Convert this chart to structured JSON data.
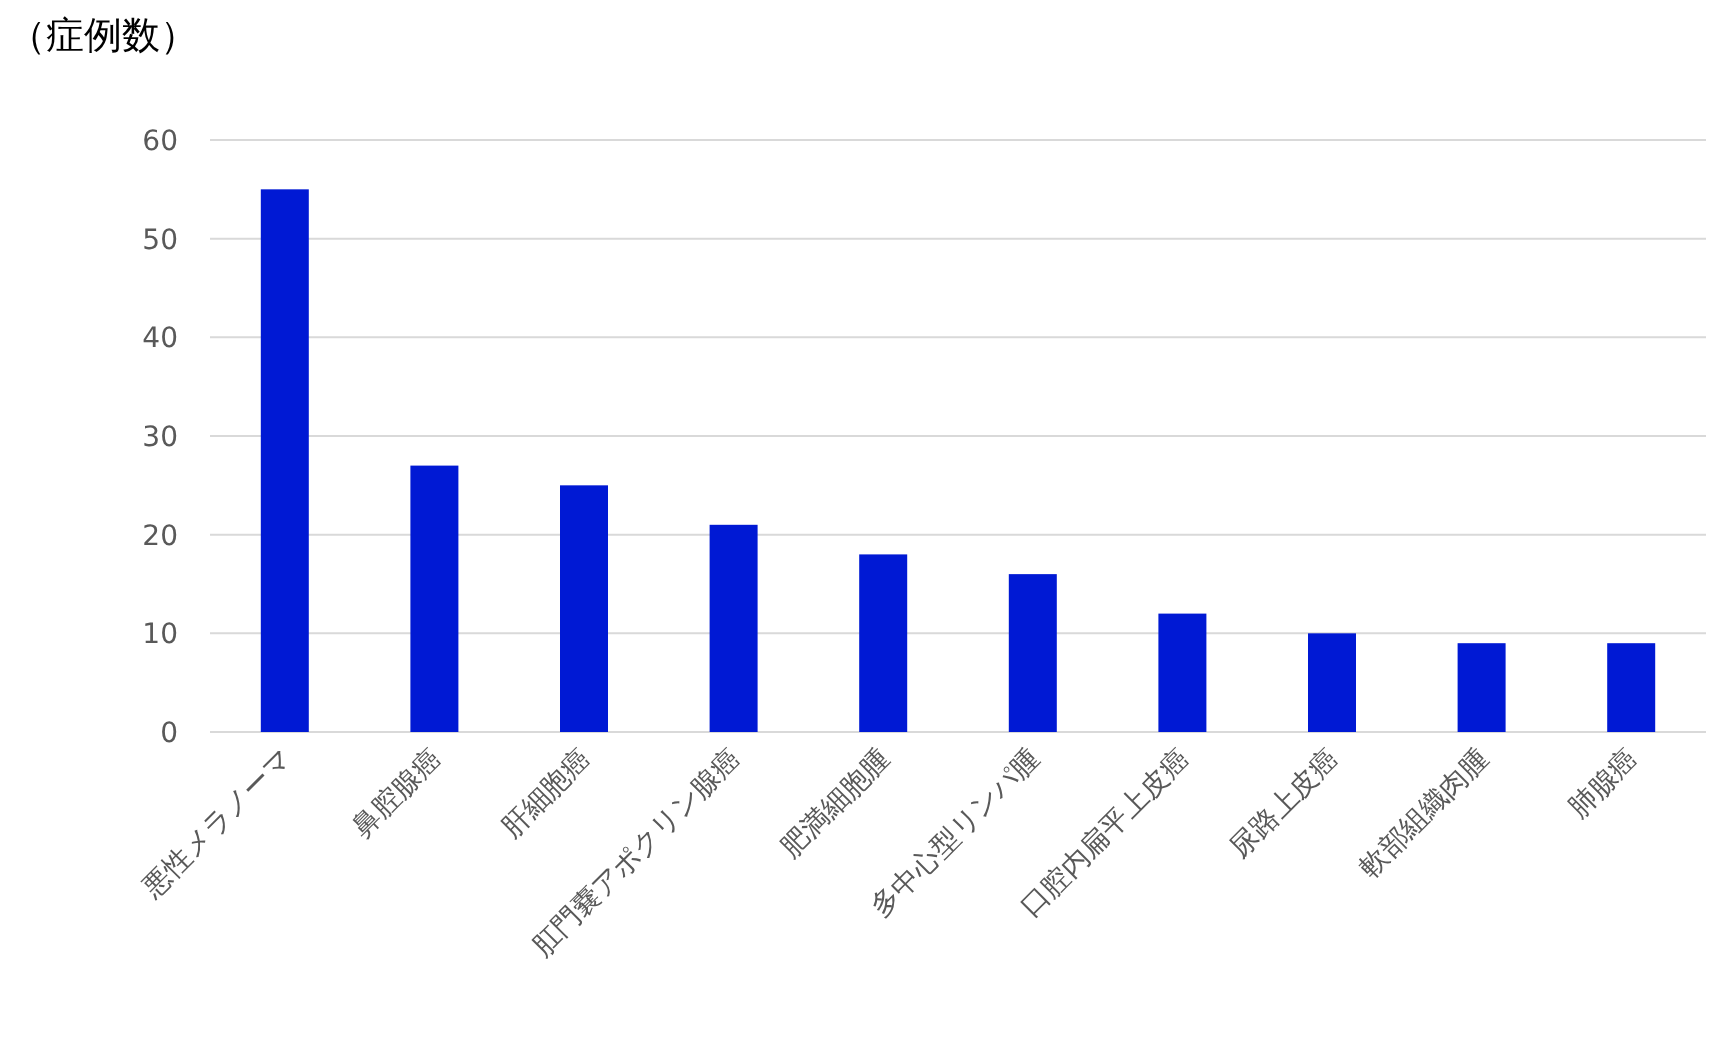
{
  "chart_data": {
    "type": "bar",
    "ylabel": "（症例数）",
    "categories": [
      "悪性メラノーマ",
      "鼻腔腺癌",
      "肝細胞癌",
      "肛門嚢アポクリン腺癌",
      "肥満細胞腫",
      "多中心型リンパ腫",
      "口腔内扁平上皮癌",
      "尿路上皮癌",
      "軟部組織肉腫",
      "肺腺癌"
    ],
    "values": [
      55,
      27,
      25,
      21,
      18,
      16,
      12,
      10,
      9,
      9
    ],
    "color": "#0019d4",
    "ylim": [
      0,
      60
    ],
    "yticks": [
      0,
      10,
      20,
      30,
      40,
      50,
      60
    ],
    "grid": "y"
  }
}
